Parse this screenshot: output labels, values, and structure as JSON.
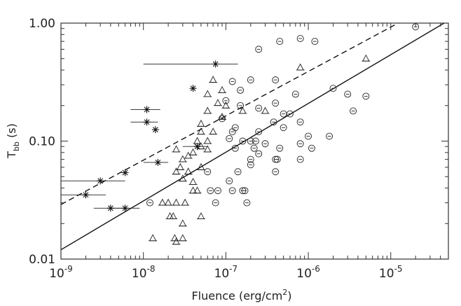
{
  "chart_data": {
    "type": "scatter",
    "title": "",
    "xlabel": "Fluence (erg/cm",
    "xlabel_sup": "2",
    "xlabel_tail": ")",
    "ylabel": "T",
    "ylabel_sub": "bb",
    "ylabel_tail": " (s)",
    "x_scale": "log",
    "y_scale": "log",
    "xlim": [
      1e-09,
      5e-05
    ],
    "ylim": [
      0.01,
      1.0
    ],
    "x_ticks": [
      {
        "base": "10",
        "exp": "-9",
        "value": 1e-09
      },
      {
        "base": "10",
        "exp": "-8",
        "value": 1e-08
      },
      {
        "base": "10",
        "exp": "-7",
        "value": 1e-07
      },
      {
        "base": "10",
        "exp": "-6",
        "value": 1e-06
      },
      {
        "base": "10",
        "exp": "-5",
        "value": 1e-05
      }
    ],
    "y_ticks": [
      {
        "label": "0.01",
        "value": 0.01
      },
      {
        "label": "0.10",
        "value": 0.1
      },
      {
        "label": "1.00",
        "value": 1.0
      }
    ],
    "grid": false,
    "legend": "none",
    "series": [
      {
        "marker": "asterisk",
        "points": [
          {
            "x": 3e-09,
            "y": 0.046,
            "xerr": [
              1e-09,
              6e-09
            ]
          },
          {
            "x": 2e-09,
            "y": 0.035,
            "xerr": [
              1e-09,
              3.5e-09
            ]
          },
          {
            "x": 6e-09,
            "y": 0.054
          },
          {
            "x": 4e-09,
            "y": 0.027,
            "xerr": [
              2.5e-09,
              6.5e-09
            ]
          },
          {
            "x": 6e-09,
            "y": 0.027,
            "xerr": [
              4e-09,
              9e-09
            ]
          },
          {
            "x": 1.1e-08,
            "y": 0.185,
            "xerr": [
              7e-09,
              1.6e-08
            ]
          },
          {
            "x": 1.1e-08,
            "y": 0.145,
            "xerr": [
              7e-09,
              1.5e-08
            ]
          },
          {
            "x": 1.4e-08,
            "y": 0.125
          },
          {
            "x": 1.5e-08,
            "y": 0.066,
            "xerr": [
              1e-08,
              2e-08
            ]
          },
          {
            "x": 4e-08,
            "y": 0.28
          },
          {
            "x": 7.5e-08,
            "y": 0.45,
            "xerr": [
              1e-08,
              1.4e-07
            ]
          },
          {
            "x": 4.5e-08,
            "y": 0.09,
            "xerr": [
              3e-08,
              6e-08
            ]
          }
        ]
      },
      {
        "marker": "triangle",
        "points": [
          {
            "x": 5e-06,
            "y": 0.5
          },
          {
            "x": 8e-07,
            "y": 0.42
          },
          {
            "x": 7e-08,
            "y": 0.33
          },
          {
            "x": 9e-08,
            "y": 0.27
          },
          {
            "x": 6e-08,
            "y": 0.25
          },
          {
            "x": 8e-08,
            "y": 0.21
          },
          {
            "x": 1e-07,
            "y": 0.2
          },
          {
            "x": 6e-08,
            "y": 0.18
          },
          {
            "x": 9e-08,
            "y": 0.16
          },
          {
            "x": 5e-08,
            "y": 0.14
          },
          {
            "x": 7e-08,
            "y": 0.12
          },
          {
            "x": 6e-08,
            "y": 0.1
          },
          {
            "x": 4.5e-08,
            "y": 0.1
          },
          {
            "x": 5e-08,
            "y": 0.09
          },
          {
            "x": 6e-08,
            "y": 0.085
          },
          {
            "x": 4e-08,
            "y": 0.08
          },
          {
            "x": 3.5e-08,
            "y": 0.075
          },
          {
            "x": 2.5e-08,
            "y": 0.085
          },
          {
            "x": 3e-08,
            "y": 0.07
          },
          {
            "x": 2.8e-08,
            "y": 0.06
          },
          {
            "x": 2.5e-08,
            "y": 0.055
          },
          {
            "x": 3.5e-08,
            "y": 0.055
          },
          {
            "x": 3e-08,
            "y": 0.048
          },
          {
            "x": 4e-08,
            "y": 0.045
          },
          {
            "x": 5e-08,
            "y": 0.06
          },
          {
            "x": 4.5e-08,
            "y": 0.038
          },
          {
            "x": 4e-08,
            "y": 0.038
          },
          {
            "x": 3.2e-08,
            "y": 0.03
          },
          {
            "x": 2.5e-08,
            "y": 0.03
          },
          {
            "x": 2e-08,
            "y": 0.03
          },
          {
            "x": 1.7e-08,
            "y": 0.03
          },
          {
            "x": 2.1e-08,
            "y": 0.023
          },
          {
            "x": 2.3e-08,
            "y": 0.023
          },
          {
            "x": 5e-08,
            "y": 0.023
          },
          {
            "x": 3e-08,
            "y": 0.02
          },
          {
            "x": 1.3e-08,
            "y": 0.015
          },
          {
            "x": 2.4e-08,
            "y": 0.015
          },
          {
            "x": 3e-08,
            "y": 0.015
          },
          {
            "x": 2.5e-08,
            "y": 0.014
          },
          {
            "x": 1.6e-07,
            "y": 0.18
          },
          {
            "x": 3e-07,
            "y": 0.18
          },
          {
            "x": 5e-08,
            "y": 0.12
          }
        ]
      },
      {
        "marker": "circle",
        "points": [
          {
            "x": 2e-05,
            "y": 0.93
          },
          {
            "x": 8e-07,
            "y": 0.74
          },
          {
            "x": 4.5e-07,
            "y": 0.7
          },
          {
            "x": 1.2e-06,
            "y": 0.7
          },
          {
            "x": 2.5e-07,
            "y": 0.6
          },
          {
            "x": 4e-07,
            "y": 0.33
          },
          {
            "x": 2e-07,
            "y": 0.33
          },
          {
            "x": 1.2e-07,
            "y": 0.32
          },
          {
            "x": 1.5e-07,
            "y": 0.27
          },
          {
            "x": 2e-06,
            "y": 0.28
          },
          {
            "x": 7e-07,
            "y": 0.25
          },
          {
            "x": 3e-06,
            "y": 0.25
          },
          {
            "x": 5e-06,
            "y": 0.24
          },
          {
            "x": 1e-07,
            "y": 0.22
          },
          {
            "x": 4e-07,
            "y": 0.21
          },
          {
            "x": 1.5e-07,
            "y": 0.2
          },
          {
            "x": 2.5e-07,
            "y": 0.19
          },
          {
            "x": 3.5e-06,
            "y": 0.18
          },
          {
            "x": 5e-07,
            "y": 0.17
          },
          {
            "x": 6e-07,
            "y": 0.17
          },
          {
            "x": 9e-08,
            "y": 0.155
          },
          {
            "x": 3.8e-07,
            "y": 0.145
          },
          {
            "x": 8e-07,
            "y": 0.145
          },
          {
            "x": 1.3e-07,
            "y": 0.13
          },
          {
            "x": 1.2e-07,
            "y": 0.12
          },
          {
            "x": 2.5e-07,
            "y": 0.12
          },
          {
            "x": 5e-07,
            "y": 0.13
          },
          {
            "x": 1e-06,
            "y": 0.11
          },
          {
            "x": 1.8e-06,
            "y": 0.11
          },
          {
            "x": 1.1e-07,
            "y": 0.105
          },
          {
            "x": 1.6e-07,
            "y": 0.1
          },
          {
            "x": 2e-07,
            "y": 0.1
          },
          {
            "x": 2.3e-07,
            "y": 0.1
          },
          {
            "x": 3e-07,
            "y": 0.095
          },
          {
            "x": 1.3e-07,
            "y": 0.087
          },
          {
            "x": 2.2e-07,
            "y": 0.087
          },
          {
            "x": 4.5e-07,
            "y": 0.087
          },
          {
            "x": 8e-07,
            "y": 0.095
          },
          {
            "x": 1.1e-06,
            "y": 0.087
          },
          {
            "x": 2.5e-07,
            "y": 0.078
          },
          {
            "x": 2e-07,
            "y": 0.07
          },
          {
            "x": 4e-07,
            "y": 0.07
          },
          {
            "x": 4.2e-07,
            "y": 0.07
          },
          {
            "x": 8e-07,
            "y": 0.07
          },
          {
            "x": 2e-07,
            "y": 0.063
          },
          {
            "x": 1.4e-07,
            "y": 0.055
          },
          {
            "x": 4e-07,
            "y": 0.055
          },
          {
            "x": 6e-08,
            "y": 0.055
          },
          {
            "x": 1.1e-07,
            "y": 0.046
          },
          {
            "x": 1.2e-07,
            "y": 0.038
          },
          {
            "x": 1.6e-07,
            "y": 0.038
          },
          {
            "x": 1.7e-07,
            "y": 0.038
          },
          {
            "x": 6.5e-08,
            "y": 0.038
          },
          {
            "x": 8e-08,
            "y": 0.038
          },
          {
            "x": 7.5e-08,
            "y": 0.03
          },
          {
            "x": 1.8e-07,
            "y": 0.03
          },
          {
            "x": 1.2e-08,
            "y": 0.03
          }
        ]
      }
    ],
    "lines": [
      {
        "style": "solid",
        "x": [
          1e-09,
          5e-05
        ],
        "y": [
          0.012,
          1.05
        ]
      },
      {
        "style": "dashed",
        "x": [
          1e-09,
          1.4e-05
        ],
        "y": [
          0.029,
          1.05
        ]
      }
    ]
  }
}
